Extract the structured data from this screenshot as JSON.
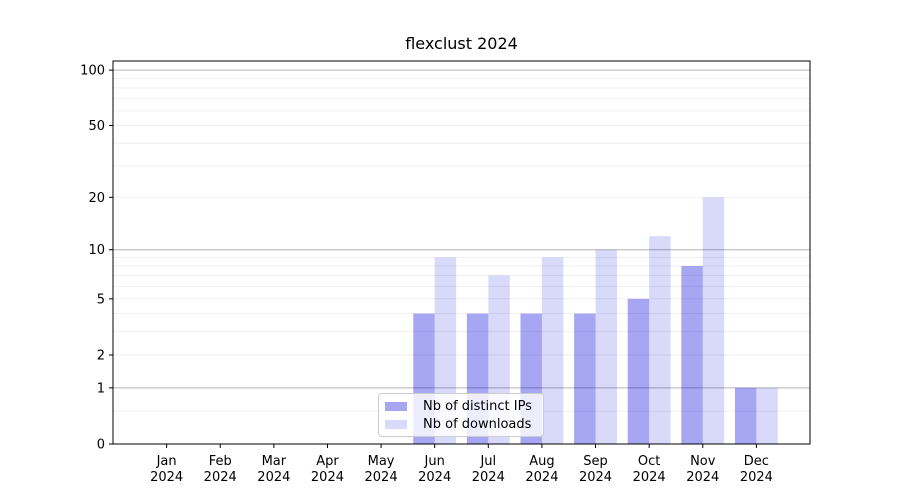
{
  "chart_data": {
    "type": "bar",
    "title": "flexclust 2024",
    "categories": [
      "Jan",
      "Feb",
      "Mar",
      "Apr",
      "May",
      "Jun",
      "Jul",
      "Aug",
      "Sep",
      "Oct",
      "Nov",
      "Dec"
    ],
    "year": "2024",
    "series": [
      {
        "name": "Nb of distinct IPs",
        "values": [
          0,
          0,
          0,
          0,
          0,
          4,
          4,
          4,
          4,
          5,
          8,
          1
        ],
        "fill": "#0000dd",
        "opacity": 0.35,
        "swatch": "#a6a6f3"
      },
      {
        "name": "Nb of downloads",
        "values": [
          0,
          0,
          0,
          0,
          0,
          9,
          7,
          9,
          10,
          12,
          20,
          1
        ],
        "fill": "#0000dd",
        "opacity": 0.15,
        "swatch": "#d9d9fa"
      }
    ],
    "xlabel": "",
    "ylabel": "",
    "yscale": "log1p",
    "ylim": [
      0,
      112
    ],
    "yticks": [
      0,
      1,
      2,
      5,
      10,
      20,
      50,
      100
    ],
    "major_gridlines": [
      1,
      10,
      100
    ],
    "minor_gridlines": [
      0.5,
      2,
      3,
      4,
      5,
      6,
      7,
      8,
      9,
      20,
      30,
      40,
      50,
      60,
      70,
      80,
      90
    ],
    "grid": true,
    "legend_position": "lower center"
  },
  "colors": {
    "background": "#ffffff",
    "axis": "#000000",
    "major_grid": "#b4b4b4",
    "minor_grid": "#ededed",
    "legend_border": "#cccccc"
  }
}
